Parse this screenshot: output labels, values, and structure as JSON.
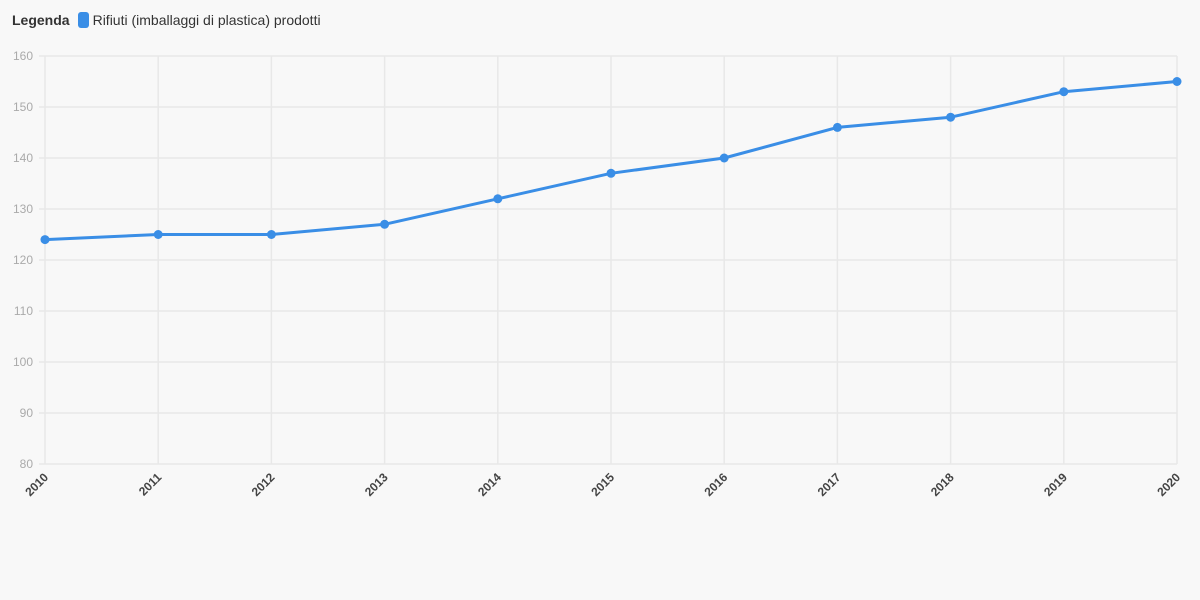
{
  "legend": {
    "title": "Legenda",
    "item_label": "Rifiuti (imballaggi di plastica) prodotti"
  },
  "colors": {
    "series": "#3a8ee6",
    "grid": "#e8e8e8",
    "background": "#f8f8f8"
  },
  "chart_data": {
    "type": "line",
    "x": [
      "2010",
      "2011",
      "2012",
      "2013",
      "2014",
      "2015",
      "2016",
      "2017",
      "2018",
      "2019",
      "2020"
    ],
    "series": [
      {
        "name": "Rifiuti (imballaggi di plastica) prodotti",
        "values": [
          124,
          125,
          125,
          127,
          132,
          137,
          140,
          146,
          148,
          153,
          155
        ]
      }
    ],
    "yticks": [
      80,
      90,
      100,
      110,
      120,
      130,
      140,
      150,
      160
    ],
    "ylim": [
      80,
      160
    ],
    "grid": true,
    "legend_position": "top-left"
  }
}
